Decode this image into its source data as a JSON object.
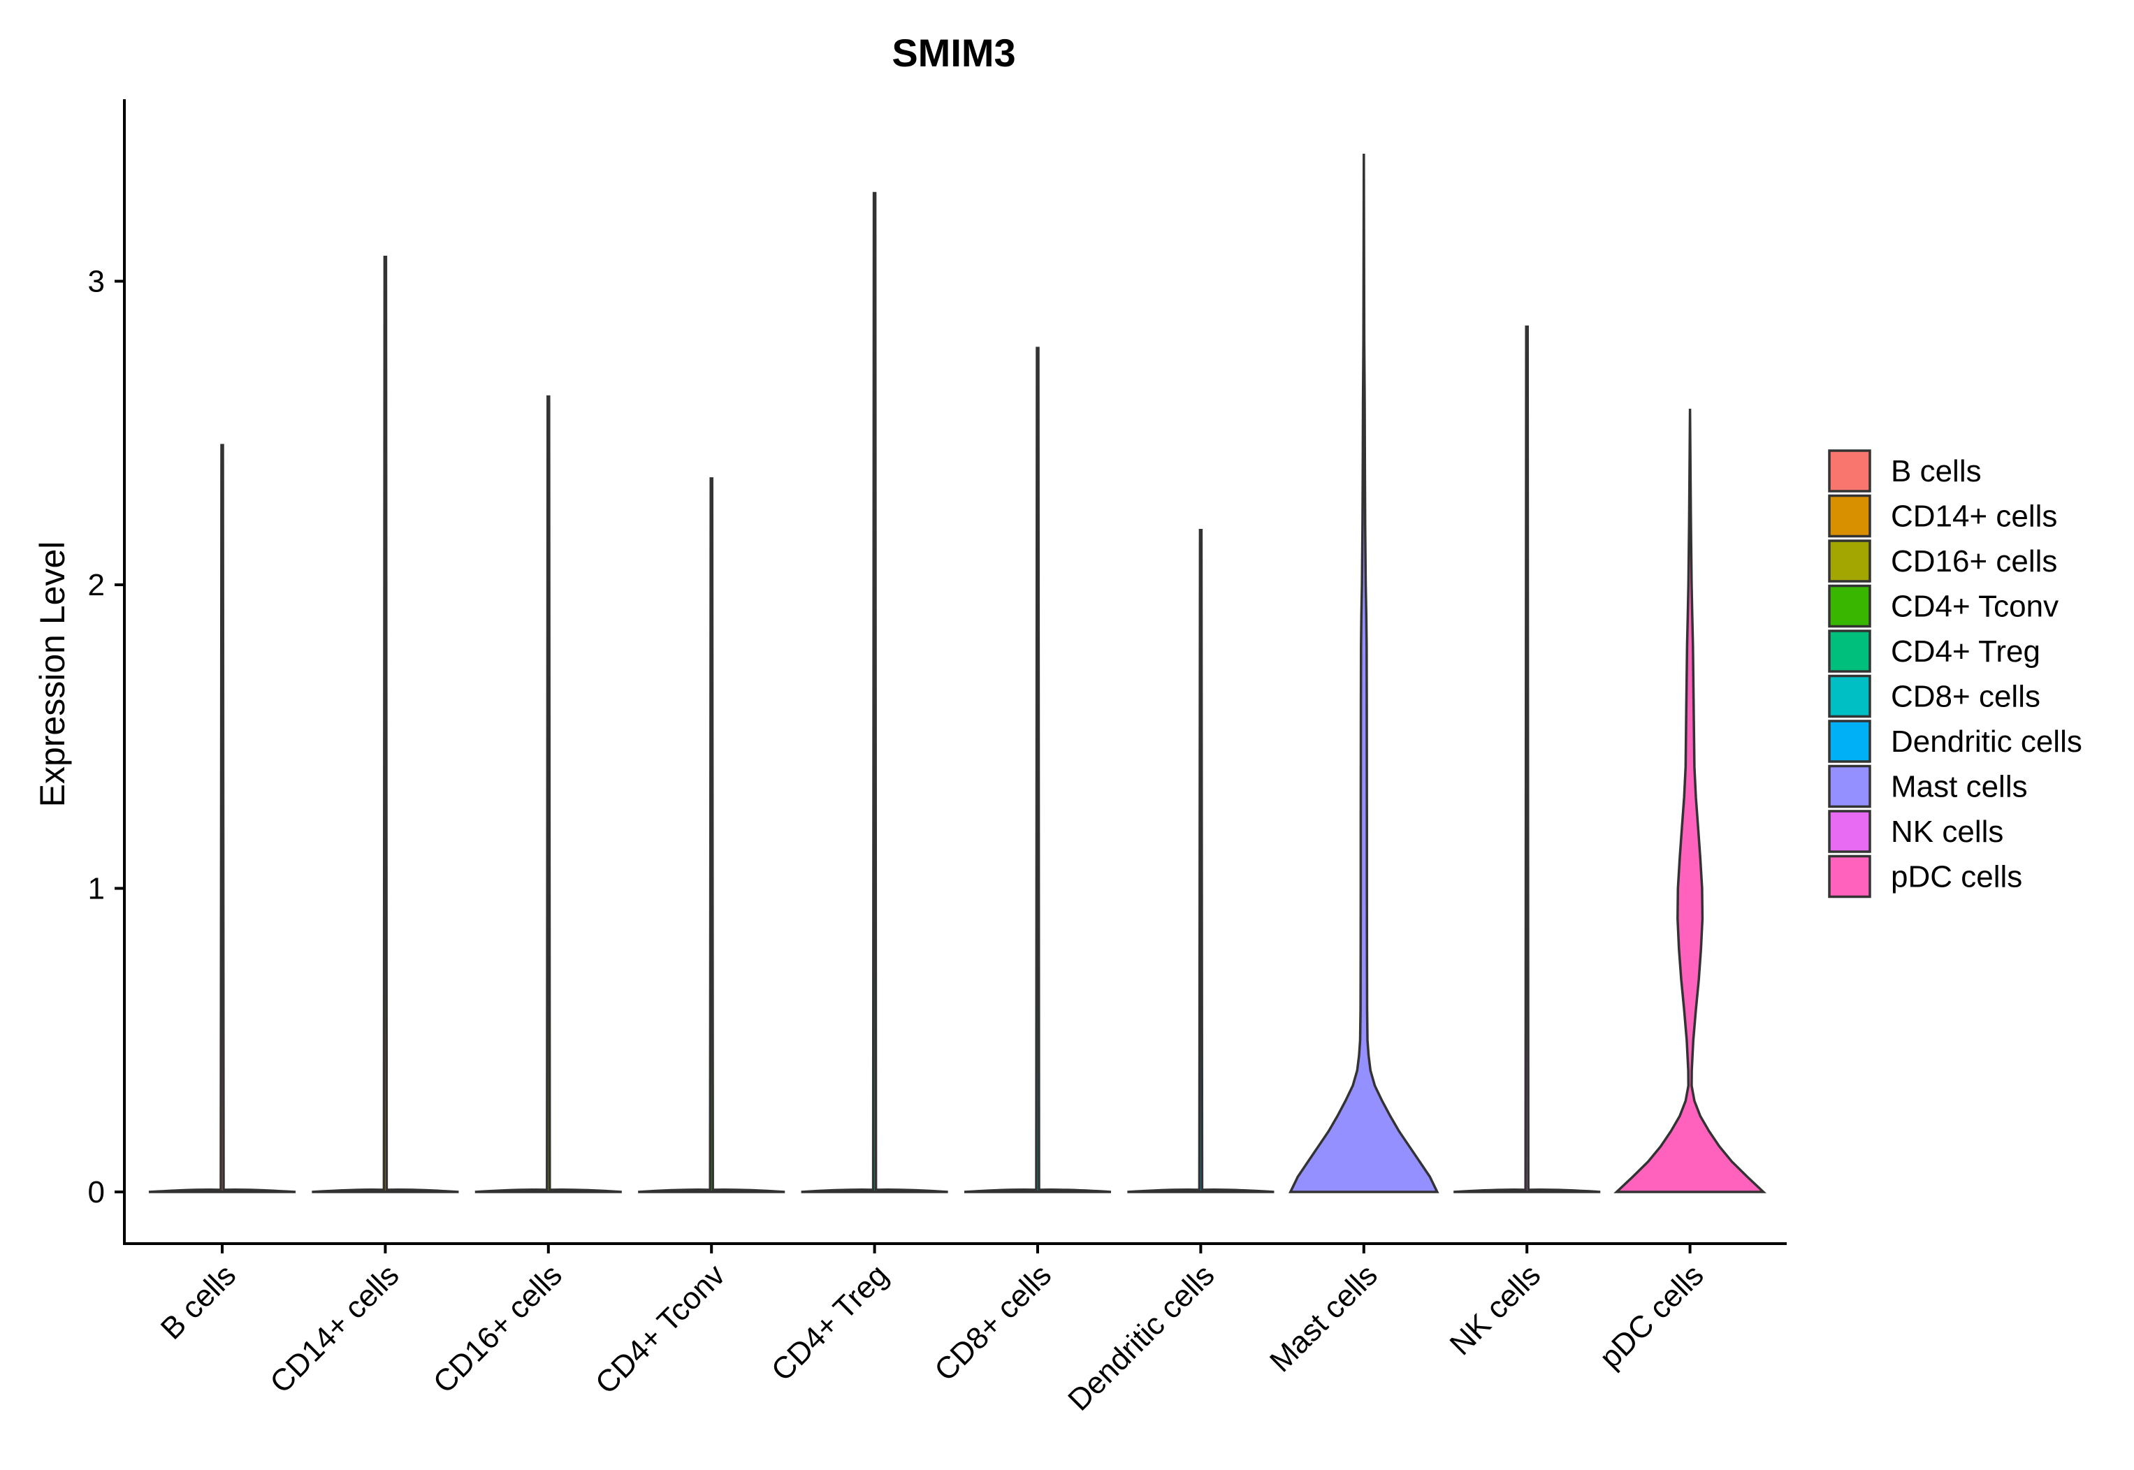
{
  "chart_data": {
    "type": "violin",
    "title": "SMIM3",
    "xlabel": "",
    "ylabel": "Expression Level",
    "ylim": [
      -0.17,
      3.6
    ],
    "yticks": [
      0,
      1,
      2,
      3
    ],
    "categories": [
      "B cells",
      "CD14+ cells",
      "CD16+ cells",
      "CD4+ Tconv",
      "CD4+ Treg",
      "CD8+ cells",
      "Dendritic cells",
      "Mast cells",
      "NK cells",
      "pDC cells"
    ],
    "colors": [
      "#F8766D",
      "#D89000",
      "#A3A500",
      "#39B600",
      "#00BF7D",
      "#00BFC4",
      "#00B0F6",
      "#9590FF",
      "#E76BF3",
      "#FF62BC"
    ],
    "max_values": [
      2.46,
      3.08,
      2.62,
      2.35,
      3.29,
      2.78,
      2.18,
      3.42,
      2.85,
      2.58
    ],
    "legend": {
      "placement": "right",
      "entries": [
        "B cells",
        "CD14+ cells",
        "CD16+ cells",
        "CD4+ Tconv",
        "CD4+ Treg",
        "CD8+ cells",
        "Dendritic cells",
        "Mast cells",
        "NK cells",
        "pDC cells"
      ]
    },
    "grid": false
  }
}
